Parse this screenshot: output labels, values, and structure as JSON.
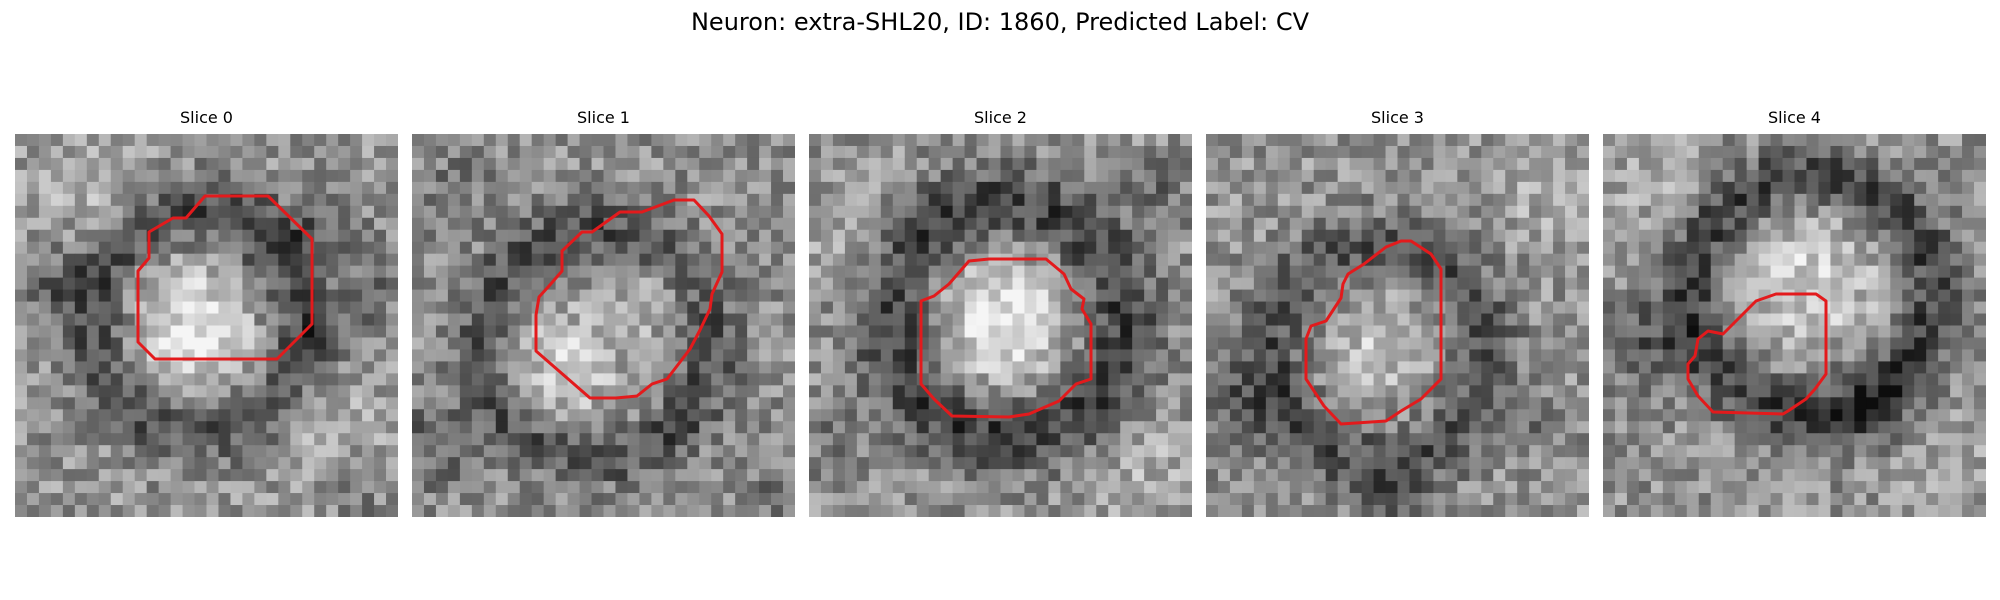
{
  "figure": {
    "title": "Neuron: extra-SHL20, ID: 1860, Predicted Label: CV"
  },
  "contour_color": "#e31a1c",
  "slices": [
    {
      "label": "Slice 0"
    },
    {
      "label": "Slice 1"
    },
    {
      "label": "Slice 2"
    },
    {
      "label": "Slice 3"
    },
    {
      "label": "Slice 4"
    }
  ]
}
